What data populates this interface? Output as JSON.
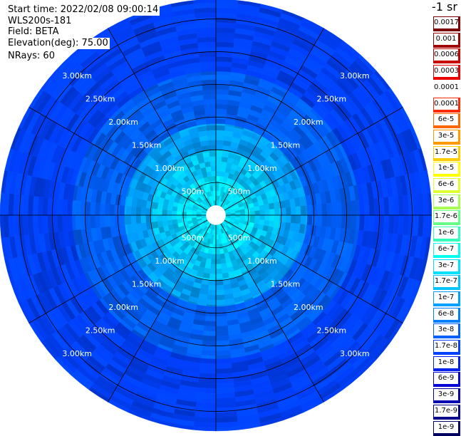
{
  "header": {
    "start_time": "Start time: 2022/02/08 09:00:14",
    "instrument": "WLS200s-181",
    "field": "Field: BETA",
    "elevation": "Elevation(deg): 75.00",
    "nrays": "NRays: 60"
  },
  "colorbar": {
    "title": "-1 sr",
    "cells": [
      {
        "label": "0.0017",
        "color": "#7a0000"
      },
      {
        "label": "0.001",
        "color": "#a00000"
      },
      {
        "label": "0.0006",
        "color": "#c80000"
      },
      {
        "label": "0.0003",
        "color": "#e80000"
      },
      {
        "label": "0.00017",
        "color": "#ffffff"
      },
      {
        "label": "0.0001",
        "color": "#ff2a00"
      },
      {
        "label": "6e-5",
        "color": "#ff6600"
      },
      {
        "label": "3e-5",
        "color": "#ff9900"
      },
      {
        "label": "1.7e-5",
        "color": "#ffcc00"
      },
      {
        "label": "1e-5",
        "color": "#ffff00"
      },
      {
        "label": "6e-6",
        "color": "#ddff33"
      },
      {
        "label": "3e-6",
        "color": "#aaff55"
      },
      {
        "label": "1.7e-6",
        "color": "#66ff88"
      },
      {
        "label": "1e-6",
        "color": "#33ffbb"
      },
      {
        "label": "6e-7",
        "color": "#00ffee"
      },
      {
        "label": "3e-7",
        "color": "#00e0ff"
      },
      {
        "label": "1.7e-7",
        "color": "#00c4ff"
      },
      {
        "label": "1e-7",
        "color": "#00a0ff"
      },
      {
        "label": "6e-8",
        "color": "#0080ff"
      },
      {
        "label": "3e-8",
        "color": "#0060ff"
      },
      {
        "label": "1.7e-8",
        "color": "#0040ff"
      },
      {
        "label": "1e-8",
        "color": "#0020f0"
      },
      {
        "label": "6e-9",
        "color": "#0000d8"
      },
      {
        "label": "3e-9",
        "color": "#0000b0"
      },
      {
        "label": "1.7e-9",
        "color": "#000088"
      },
      {
        "label": "1e-9",
        "color": "#000060"
      }
    ]
  },
  "chart_data": {
    "type": "ppi",
    "field": "BETA",
    "units": "-1 sr",
    "nrays": 60,
    "elevation_deg": 75.0,
    "max_range_km": 3.3,
    "spokes_deg": [
      0,
      30,
      60,
      90,
      120,
      150,
      180,
      210,
      240,
      270,
      300,
      330
    ],
    "range_rings": [
      {
        "range_km": 0.5,
        "label": "500m"
      },
      {
        "range_km": 1.0,
        "label": "1.00km"
      },
      {
        "range_km": 1.5,
        "label": "1.50km"
      },
      {
        "range_km": 2.0,
        "label": "2.00km"
      },
      {
        "range_km": 2.5,
        "label": "2.50km"
      },
      {
        "range_km": 3.0,
        "label": "3.00km"
      }
    ],
    "range_profile": [
      {
        "range_km_from": 0.0,
        "range_km_to": 0.15,
        "beta": null
      },
      {
        "range_km_from": 0.15,
        "range_km_to": 0.6,
        "beta": 3e-07
      },
      {
        "range_km_from": 0.6,
        "range_km_to": 1.0,
        "beta": 1.7e-07
      },
      {
        "range_km_from": 1.0,
        "range_km_to": 1.4,
        "beta": 1e-07
      },
      {
        "range_km_from": 1.4,
        "range_km_to": 2.2,
        "beta": 3e-08
      },
      {
        "range_km_from": 2.2,
        "range_km_to": 3.3,
        "beta": 1.7e-08
      }
    ]
  }
}
